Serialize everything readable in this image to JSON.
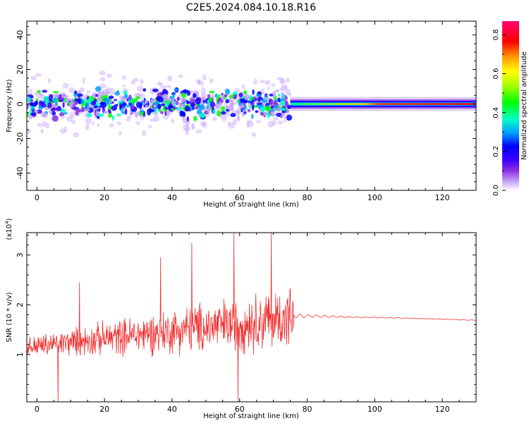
{
  "figure_title": "C2E5.2024.084.10.18.R16",
  "chart_data": [
    {
      "type": "heatmap",
      "xlabel": "Height of straight line (km)",
      "ylabel": "Frequency (Hz)",
      "xlim": [
        -3,
        130
      ],
      "ylim": [
        -50,
        48
      ],
      "x_ticks": [
        0,
        20,
        40,
        60,
        80,
        100,
        120
      ],
      "y_ticks": [
        -40,
        -20,
        0,
        20,
        40
      ],
      "colorbar": {
        "label": "Normalized spectral amplitude",
        "range": [
          0.0,
          0.87
        ],
        "ticks": [
          0.0,
          0.2,
          0.4,
          0.6,
          0.8
        ],
        "colormap": [
          "#ffffff",
          "#c7a6f8",
          "#8a2be2",
          "#3b00ff",
          "#0000ff",
          "#00a0ff",
          "#00ffc8",
          "#00ff00",
          "#aaff00",
          "#ffff00",
          "#ffa500",
          "#ff0000",
          "#ff0070"
        ]
      },
      "description_of_field": "broadband speckle between -3 and 75 km, narrow band near 0 Hz above 75 km",
      "turbulent_region_km": [
        -3,
        75
      ],
      "steady_band_km": [
        75,
        130
      ],
      "steady_band_frequency_hz": 0
    },
    {
      "type": "line",
      "xlabel": "Height of straight line (km)",
      "ylabel": "SNR (10 * v/v)",
      "y_scale_label": "(x10",
      "y_scale_exponent": "4",
      "y_scale_suffix": ")",
      "xlim": [
        -3,
        130
      ],
      "ylim": [
        0.05,
        3.45
      ],
      "x_ticks": [
        0,
        20,
        40,
        60,
        80,
        100,
        120
      ],
      "y_ticks": [
        1,
        2,
        3
      ],
      "series": [
        {
          "color": "#f03030",
          "noisy_segment_km": [
            -3,
            76
          ],
          "noisy_mean_start": 1.15,
          "noisy_mean_end": 1.75,
          "noisy_spread_start": 0.25,
          "noisy_spread_end": 0.8,
          "spikes": [
            {
              "x": 6.2,
              "y": 0.05
            },
            {
              "x": 12.5,
              "y": 2.45
            },
            {
              "x": 36.5,
              "y": 2.95
            },
            {
              "x": 45.8,
              "y": 3.25
            },
            {
              "x": 58.2,
              "y": 3.45
            },
            {
              "x": 59.5,
              "y": 0.05
            },
            {
              "x": 69.3,
              "y": 3.45
            }
          ],
          "steady_segment": [
            {
              "x": 76,
              "y": 1.78
            },
            {
              "x": 85,
              "y": 1.77
            },
            {
              "x": 95,
              "y": 1.75
            },
            {
              "x": 105,
              "y": 1.74
            },
            {
              "x": 115,
              "y": 1.72
            },
            {
              "x": 125,
              "y": 1.7
            },
            {
              "x": 130,
              "y": 1.69
            }
          ]
        }
      ]
    }
  ]
}
